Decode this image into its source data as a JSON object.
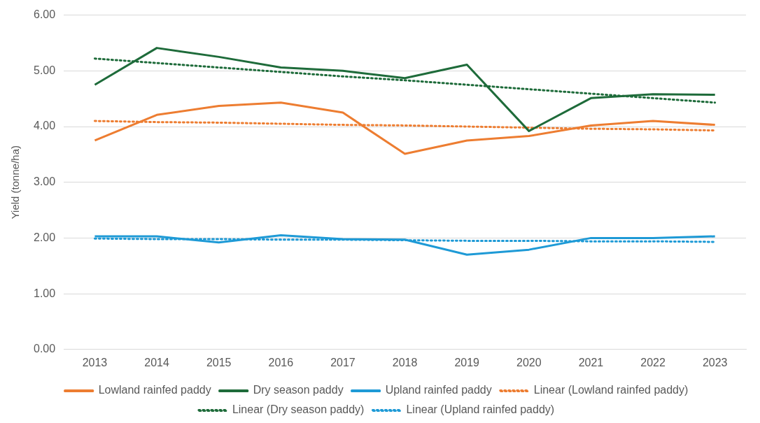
{
  "chart_data": {
    "type": "line",
    "ylabel": "Yield (tonne/ha)",
    "categories": [
      "2013",
      "2014",
      "2015",
      "2016",
      "2017",
      "2018",
      "2019",
      "2020",
      "2021",
      "2022",
      "2023"
    ],
    "series": [
      {
        "name": "Lowland rainfed paddy",
        "color": "#ed7d31",
        "values": [
          3.75,
          4.21,
          4.37,
          4.43,
          4.25,
          3.51,
          3.75,
          3.83,
          4.02,
          4.1,
          4.03
        ]
      },
      {
        "name": "Dry season paddy",
        "color": "#1e6b3a",
        "values": [
          4.75,
          5.41,
          5.25,
          5.06,
          5.0,
          4.87,
          5.11,
          3.92,
          4.51,
          4.58,
          4.57
        ]
      },
      {
        "name": "Upland rainfed paddy",
        "color": "#1e9ad6",
        "values": [
          2.03,
          2.03,
          1.92,
          2.05,
          1.98,
          1.97,
          1.7,
          1.79,
          2.0,
          2.0,
          2.03
        ]
      },
      {
        "name": "Linear (Lowland rainfed paddy)",
        "color": "#ed7d31",
        "line_style": "dotted",
        "values": [
          4.1,
          4.08,
          4.07,
          4.05,
          4.03,
          4.02,
          4.0,
          3.98,
          3.96,
          3.95,
          3.93
        ]
      },
      {
        "name": "Linear (Dry season paddy)",
        "color": "#1e6b3a",
        "line_style": "dotted",
        "values": [
          5.22,
          5.14,
          5.06,
          4.98,
          4.9,
          4.83,
          4.75,
          4.67,
          4.59,
          4.51,
          4.43
        ]
      },
      {
        "name": "Linear (Upland rainfed paddy)",
        "color": "#1e9ad6",
        "line_style": "dotted",
        "values": [
          1.99,
          1.98,
          1.98,
          1.97,
          1.97,
          1.96,
          1.95,
          1.95,
          1.94,
          1.94,
          1.93
        ]
      }
    ],
    "ylim": [
      0,
      6
    ],
    "yticks": [
      {
        "value": 0,
        "label": "0.00"
      },
      {
        "value": 1,
        "label": "1.00"
      },
      {
        "value": 2,
        "label": "2.00"
      },
      {
        "value": 3,
        "label": "3.00"
      },
      {
        "value": 4,
        "label": "4.00"
      },
      {
        "value": 5,
        "label": "5.00"
      },
      {
        "value": 6,
        "label": "6.00"
      }
    ],
    "grid": "y",
    "legend": "bottom",
    "marker": "none",
    "line_style": "solid"
  }
}
